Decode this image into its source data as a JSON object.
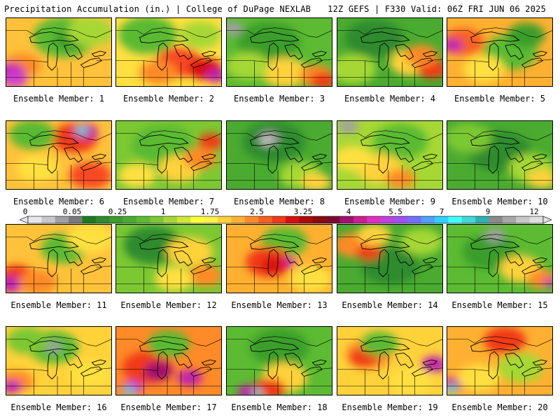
{
  "header": {
    "left": "Precipitation Accumulation (in.) | College of DuPage NEXLAB",
    "right": "12Z GEFS | F330 Valid: 06Z FRI JUN 06 2025"
  },
  "colorbar": {
    "tick_labels": [
      "0",
      "0.05",
      "0.25",
      "1",
      "1.75",
      "2.5",
      "3.25",
      "4",
      "5.5",
      "7",
      "9",
      "12"
    ],
    "colors": [
      "#e8e8e8",
      "#c8c8c8",
      "#a0a0a0",
      "#7a7a7a",
      "#1e7a1e",
      "#2e8b2e",
      "#3c9c2c",
      "#4aab30",
      "#5cbb32",
      "#7cc832",
      "#a6d834",
      "#d2e838",
      "#ffff33",
      "#fff04a",
      "#ffd23a",
      "#ffb030",
      "#ff8a28",
      "#f86020",
      "#f03a18",
      "#d81010",
      "#b00808",
      "#8c0a10",
      "#7a0a30",
      "#a01070",
      "#c82090",
      "#e030c0",
      "#c040e0",
      "#a050f0",
      "#7070ff",
      "#50a0ff",
      "#30d0ff",
      "#40ffff",
      "#40d8d8",
      "#30b0b0",
      "#8a8a8a",
      "#a8a8a8",
      "#c8c8c8",
      "#e0e0e0"
    ]
  },
  "panels": [
    {
      "label": "Ensemble Member: 1",
      "base": "#ffc23a",
      "blobs": [
        [
          "#5aba32",
          0.55,
          0.28,
          0.3
        ],
        [
          "#3a9e2c",
          0.62,
          0.32,
          0.16
        ],
        [
          "#ff8a28",
          0.15,
          0.7,
          0.18
        ],
        [
          "#c020b0",
          0.04,
          0.8,
          0.14
        ],
        [
          "#d040d0",
          0.08,
          0.9,
          0.12
        ],
        [
          "#a6d834",
          0.8,
          0.2,
          0.22
        ]
      ]
    },
    {
      "label": "Ensemble Member: 2",
      "base": "#ffe040",
      "blobs": [
        [
          "#5aba32",
          0.3,
          0.25,
          0.28
        ],
        [
          "#f84a20",
          0.6,
          0.65,
          0.22
        ],
        [
          "#d81010",
          0.85,
          0.75,
          0.16
        ],
        [
          "#c020b0",
          0.95,
          0.85,
          0.1
        ],
        [
          "#a6d834",
          0.8,
          0.25,
          0.2
        ],
        [
          "#ff8a28",
          0.4,
          0.8,
          0.18
        ]
      ]
    },
    {
      "label": "Ensemble Member: 3",
      "base": "#5cbb32",
      "blobs": [
        [
          "#3a9e2c",
          0.4,
          0.35,
          0.3
        ],
        [
          "#a0a0a0",
          0.05,
          0.15,
          0.1
        ],
        [
          "#ffd23a",
          0.55,
          0.8,
          0.22
        ],
        [
          "#ff8a28",
          0.85,
          0.85,
          0.16
        ],
        [
          "#f03a18",
          0.92,
          0.92,
          0.12
        ],
        [
          "#a6d834",
          0.2,
          0.7,
          0.2
        ]
      ]
    },
    {
      "label": "Ensemble Member: 4",
      "base": "#4aab30",
      "blobs": [
        [
          "#2e8b2e",
          0.35,
          0.3,
          0.28
        ],
        [
          "#ffd23a",
          0.7,
          0.65,
          0.2
        ],
        [
          "#f03a18",
          0.9,
          0.75,
          0.14
        ],
        [
          "#ff8a28",
          0.8,
          0.55,
          0.16
        ],
        [
          "#a6d834",
          0.15,
          0.75,
          0.22
        ]
      ]
    },
    {
      "label": "Ensemble Member: 5",
      "base": "#ffb030",
      "blobs": [
        [
          "#5aba32",
          0.6,
          0.5,
          0.26
        ],
        [
          "#3a9e2c",
          0.75,
          0.25,
          0.18
        ],
        [
          "#f86020",
          0.15,
          0.35,
          0.2
        ],
        [
          "#c020b0",
          0.05,
          0.4,
          0.1
        ],
        [
          "#ffe040",
          0.35,
          0.75,
          0.2
        ]
      ]
    },
    {
      "label": "Ensemble Member: 6",
      "base": "#ffc23a",
      "blobs": [
        [
          "#f03a18",
          0.65,
          0.25,
          0.22
        ],
        [
          "#c020b0",
          0.75,
          0.15,
          0.12
        ],
        [
          "#40d8d8",
          0.72,
          0.14,
          0.06
        ],
        [
          "#5aba32",
          0.25,
          0.2,
          0.22
        ],
        [
          "#f84a20",
          0.8,
          0.8,
          0.2
        ],
        [
          "#ffe040",
          0.3,
          0.7,
          0.2
        ]
      ]
    },
    {
      "label": "Ensemble Member: 7",
      "base": "#7cc832",
      "blobs": [
        [
          "#5aba32",
          0.45,
          0.35,
          0.3
        ],
        [
          "#ffd23a",
          0.6,
          0.7,
          0.2
        ],
        [
          "#ff8a28",
          0.8,
          0.55,
          0.16
        ],
        [
          "#f03a18",
          0.9,
          0.3,
          0.12
        ],
        [
          "#ffe040",
          0.2,
          0.8,
          0.18
        ]
      ]
    },
    {
      "label": "Ensemble Member: 8",
      "base": "#4aab30",
      "blobs": [
        [
          "#2e8b2e",
          0.45,
          0.3,
          0.3
        ],
        [
          "#a0a0a0",
          0.4,
          0.25,
          0.1
        ],
        [
          "#c8c8c8",
          0.38,
          0.3,
          0.06
        ],
        [
          "#a6d834",
          0.7,
          0.8,
          0.2
        ],
        [
          "#ffd23a",
          0.85,
          0.9,
          0.14
        ]
      ]
    },
    {
      "label": "Ensemble Member: 9",
      "base": "#a6d834",
      "blobs": [
        [
          "#5aba32",
          0.6,
          0.3,
          0.26
        ],
        [
          "#a0a0a0",
          0.1,
          0.08,
          0.1
        ],
        [
          "#ffd23a",
          0.4,
          0.7,
          0.22
        ],
        [
          "#ff8a28",
          0.6,
          0.85,
          0.14
        ],
        [
          "#ffe040",
          0.15,
          0.55,
          0.18
        ]
      ]
    },
    {
      "label": "Ensemble Member: 10",
      "base": "#4aab30",
      "blobs": [
        [
          "#2e8b2e",
          0.5,
          0.45,
          0.3
        ],
        [
          "#a6d834",
          0.8,
          0.7,
          0.22
        ],
        [
          "#ffd23a",
          0.9,
          0.85,
          0.14
        ],
        [
          "#7cc832",
          0.2,
          0.25,
          0.22
        ]
      ]
    },
    {
      "label": "Ensemble Member: 11",
      "base": "#ffc23a",
      "blobs": [
        [
          "#5aba32",
          0.55,
          0.35,
          0.22
        ],
        [
          "#f03a18",
          0.1,
          0.75,
          0.16
        ],
        [
          "#c020b0",
          0.05,
          0.88,
          0.12
        ],
        [
          "#ff8a28",
          0.3,
          0.85,
          0.18
        ],
        [
          "#ffe040",
          0.8,
          0.2,
          0.22
        ]
      ]
    },
    {
      "label": "Ensemble Member: 12",
      "base": "#7cc832",
      "blobs": [
        [
          "#2e8b2e",
          0.35,
          0.3,
          0.28
        ],
        [
          "#ffd23a",
          0.7,
          0.4,
          0.22
        ],
        [
          "#ff8a28",
          0.85,
          0.75,
          0.16
        ],
        [
          "#ffe040",
          0.55,
          0.8,
          0.18
        ]
      ]
    },
    {
      "label": "Ensemble Member: 13",
      "base": "#ffb030",
      "blobs": [
        [
          "#5aba32",
          0.55,
          0.25,
          0.22
        ],
        [
          "#f03a18",
          0.4,
          0.55,
          0.22
        ],
        [
          "#d81010",
          0.45,
          0.6,
          0.12
        ],
        [
          "#c020b0",
          0.6,
          0.55,
          0.06
        ],
        [
          "#ffe040",
          0.8,
          0.8,
          0.2
        ]
      ]
    },
    {
      "label": "Ensemble Member: 14",
      "base": "#4aab30",
      "blobs": [
        [
          "#2e8b2e",
          0.5,
          0.6,
          0.28
        ],
        [
          "#ff8a28",
          0.15,
          0.3,
          0.18
        ],
        [
          "#f03a18",
          0.3,
          0.4,
          0.12
        ],
        [
          "#ffd23a",
          0.35,
          0.15,
          0.16
        ],
        [
          "#a6d834",
          0.8,
          0.25,
          0.2
        ]
      ]
    },
    {
      "label": "Ensemble Member: 15",
      "base": "#5cbb32",
      "blobs": [
        [
          "#3a9e2c",
          0.4,
          0.4,
          0.26
        ],
        [
          "#a0a0a0",
          0.45,
          0.15,
          0.1
        ],
        [
          "#ffd23a",
          0.7,
          0.65,
          0.2
        ],
        [
          "#ff8a28",
          0.9,
          0.8,
          0.14
        ],
        [
          "#c020b0",
          0.97,
          0.85,
          0.06
        ]
      ]
    },
    {
      "label": "Ensemble Member: 16",
      "base": "#ffd23a",
      "blobs": [
        [
          "#5aba32",
          0.45,
          0.3,
          0.24
        ],
        [
          "#a0a0a0",
          0.45,
          0.3,
          0.08
        ],
        [
          "#ff8a28",
          0.1,
          0.8,
          0.16
        ],
        [
          "#c020b0",
          0.05,
          0.88,
          0.1
        ],
        [
          "#7cc832",
          0.2,
          0.2,
          0.2
        ],
        [
          "#ffe040",
          0.8,
          0.7,
          0.2
        ]
      ]
    },
    {
      "label": "Ensemble Member: 17",
      "base": "#ff8a28",
      "blobs": [
        [
          "#f03a18",
          0.3,
          0.6,
          0.24
        ],
        [
          "#a01070",
          0.4,
          0.65,
          0.14
        ],
        [
          "#c040e0",
          0.15,
          0.9,
          0.1
        ],
        [
          "#40d8d8",
          0.12,
          0.95,
          0.06
        ],
        [
          "#c020b0",
          0.7,
          0.75,
          0.12
        ],
        [
          "#5aba32",
          0.5,
          0.25,
          0.2
        ]
      ]
    },
    {
      "label": "Ensemble Member: 18",
      "base": "#5cbb32",
      "blobs": [
        [
          "#3a9e2c",
          0.5,
          0.3,
          0.28
        ],
        [
          "#ffd23a",
          0.55,
          0.75,
          0.22
        ],
        [
          "#f03a18",
          0.4,
          0.92,
          0.16
        ],
        [
          "#c020b0",
          0.2,
          0.96,
          0.1
        ],
        [
          "#40d8d8",
          0.3,
          0.97,
          0.05
        ]
      ]
    },
    {
      "label": "Ensemble Member: 19",
      "base": "#ffd23a",
      "blobs": [
        [
          "#ff8a28",
          0.3,
          0.4,
          0.22
        ],
        [
          "#f03a18",
          0.25,
          0.45,
          0.14
        ],
        [
          "#c020b0",
          0.92,
          0.55,
          0.12
        ],
        [
          "#5aba32",
          0.4,
          0.25,
          0.18
        ],
        [
          "#ffe040",
          0.7,
          0.8,
          0.2
        ]
      ]
    },
    {
      "label": "Ensemble Member: 20",
      "base": "#ffb030",
      "blobs": [
        [
          "#f03a18",
          0.55,
          0.2,
          0.2
        ],
        [
          "#a6d834",
          0.7,
          0.6,
          0.22
        ],
        [
          "#c020b0",
          0.05,
          0.85,
          0.1
        ],
        [
          "#40d8d8",
          0.04,
          0.92,
          0.06
        ],
        [
          "#ffe040",
          0.3,
          0.75,
          0.2
        ]
      ]
    }
  ]
}
